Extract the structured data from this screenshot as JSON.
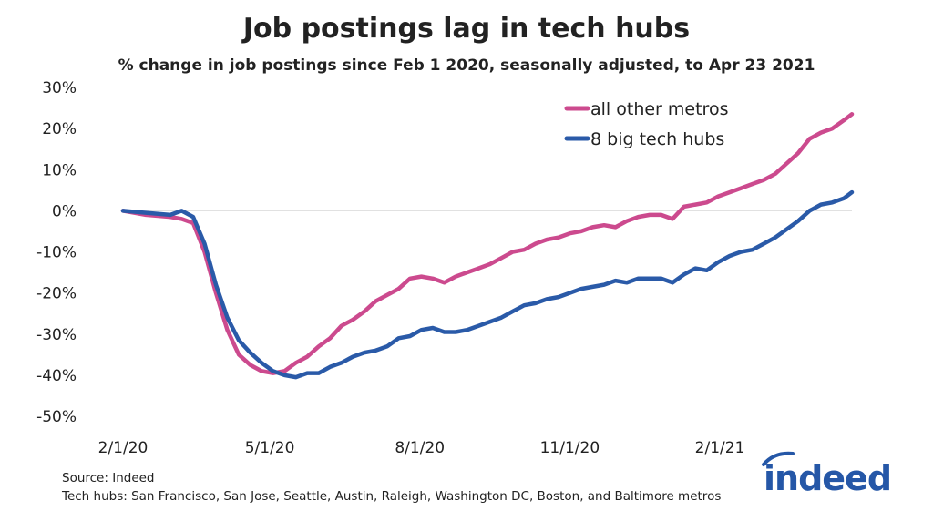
{
  "chart_data": {
    "type": "line",
    "title": "Job postings lag in tech hubs",
    "subtitle": "% change in job postings since Feb 1 2020, seasonally adjusted, to Apr 23 2021",
    "xlabel": "",
    "ylabel": "",
    "ylim": [
      -50,
      30
    ],
    "yticks": [
      "30%",
      "20%",
      "10%",
      "0%",
      "-10%",
      "-20%",
      "-30%",
      "-40%",
      "-50%"
    ],
    "ytick_values": [
      30,
      20,
      10,
      0,
      -10,
      -20,
      -30,
      -40,
      -50
    ],
    "xlim": [
      "2020-02-01",
      "2021-04-23"
    ],
    "xticks": [
      "2/1/20",
      "5/1/20",
      "8/1/20",
      "11/1/20",
      "2/1/21"
    ],
    "xtick_dates": [
      "2020-02-01",
      "2020-05-01",
      "2020-08-01",
      "2020-11-01",
      "2021-02-01"
    ],
    "grid": "zero line only",
    "legend_placement": "top-right",
    "x": [
      "2020-02-01",
      "2020-02-15",
      "2020-03-01",
      "2020-03-08",
      "2020-03-15",
      "2020-03-22",
      "2020-03-29",
      "2020-04-05",
      "2020-04-12",
      "2020-04-19",
      "2020-04-26",
      "2020-05-03",
      "2020-05-10",
      "2020-05-17",
      "2020-05-24",
      "2020-05-31",
      "2020-06-07",
      "2020-06-14",
      "2020-06-21",
      "2020-06-28",
      "2020-07-05",
      "2020-07-12",
      "2020-07-19",
      "2020-07-26",
      "2020-08-02",
      "2020-08-09",
      "2020-08-16",
      "2020-08-23",
      "2020-08-30",
      "2020-09-06",
      "2020-09-13",
      "2020-09-20",
      "2020-09-27",
      "2020-10-04",
      "2020-10-11",
      "2020-10-18",
      "2020-10-25",
      "2020-11-01",
      "2020-11-08",
      "2020-11-15",
      "2020-11-22",
      "2020-11-29",
      "2020-12-06",
      "2020-12-13",
      "2020-12-20",
      "2020-12-27",
      "2021-01-03",
      "2021-01-10",
      "2021-01-17",
      "2021-01-24",
      "2021-01-31",
      "2021-02-07",
      "2021-02-14",
      "2021-02-21",
      "2021-02-28",
      "2021-03-07",
      "2021-03-14",
      "2021-03-21",
      "2021-03-28",
      "2021-04-04",
      "2021-04-11",
      "2021-04-18",
      "2021-04-23"
    ],
    "series": [
      {
        "name": "all other metros",
        "color": "#cc4a8e",
        "values": [
          0,
          -1,
          -1.5,
          -2,
          -3,
          -10,
          -20,
          -29,
          -35,
          -37.5,
          -39,
          -39.5,
          -39,
          -37,
          -35.5,
          -33,
          -31,
          -28,
          -26.5,
          -24.5,
          -22,
          -20.5,
          -19,
          -16.5,
          -16,
          -16.5,
          -17.5,
          -16,
          -15,
          -14,
          -13,
          -11.5,
          -10,
          -9.5,
          -8,
          -7,
          -6.5,
          -5.5,
          -5,
          -4,
          -3.5,
          -4,
          -2.5,
          -1.5,
          -1,
          -1,
          -2,
          1,
          1.5,
          2,
          3.5,
          4.5,
          5.5,
          6.5,
          7.5,
          9,
          11.5,
          14,
          17.5,
          19,
          20,
          22,
          23.5
        ]
      },
      {
        "name": "8 big tech hubs",
        "color": "#2a5aa8",
        "values": [
          0,
          -0.5,
          -1,
          0,
          -1.5,
          -8,
          -18,
          -26,
          -31.5,
          -34.5,
          -37,
          -39,
          -40,
          -40.5,
          -39.5,
          -39.5,
          -38,
          -37,
          -35.5,
          -34.5,
          -34,
          -33,
          -31,
          -30.5,
          -29,
          -28.5,
          -29.5,
          -29.5,
          -29,
          -28,
          -27,
          -26,
          -24.5,
          -23,
          -22.5,
          -21.5,
          -21,
          -20,
          -19,
          -18.5,
          -18,
          -17,
          -17.5,
          -16.5,
          -16.5,
          -16.5,
          -17.5,
          -15.5,
          -14,
          -14.5,
          -12.5,
          -11,
          -10,
          -9.5,
          -8,
          -6.5,
          -4.5,
          -2.5,
          0,
          1.5,
          2,
          3,
          4.5
        ]
      }
    ]
  },
  "footer": {
    "source": "Source: Indeed",
    "note": "Tech hubs: San Francisco, San Jose, Seattle, Austin, Raleigh, Washington DC, Boston, and Baltimore metros"
  },
  "logo": {
    "text": "indeed",
    "color": "#2557a7"
  }
}
